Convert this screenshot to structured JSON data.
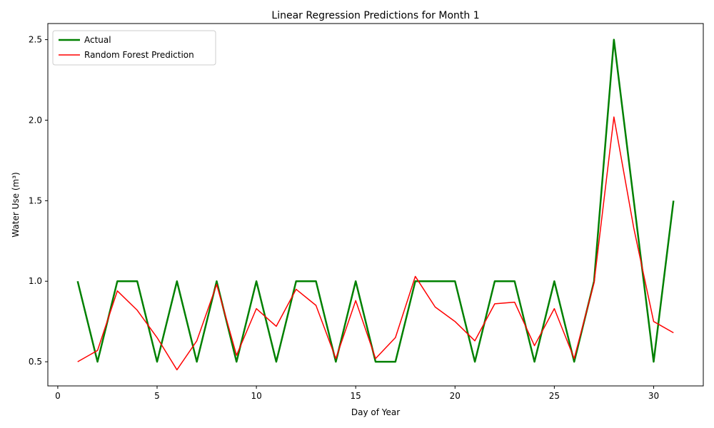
{
  "chart_data": {
    "type": "line",
    "title": "Linear Regression Predictions for Month 1",
    "xlabel": "Day of Year",
    "ylabel": "Water Use (m³)",
    "xlim": [
      -0.5,
      32.5
    ],
    "ylim": [
      0.35,
      2.6
    ],
    "x_ticks": [
      0,
      5,
      10,
      15,
      20,
      25,
      30
    ],
    "y_ticks": [
      0.5,
      1.0,
      1.5,
      2.0,
      2.5
    ],
    "x_tick_labels": [
      "0",
      "5",
      "10",
      "15",
      "20",
      "25",
      "30"
    ],
    "y_tick_labels": [
      "0.5",
      "1.0",
      "1.5",
      "2.0",
      "2.5"
    ],
    "legend_position": "top-left",
    "x": [
      1,
      2,
      3,
      4,
      5,
      6,
      7,
      8,
      9,
      10,
      11,
      12,
      13,
      14,
      15,
      16,
      17,
      18,
      19,
      20,
      21,
      22,
      23,
      24,
      25,
      26,
      27,
      28,
      29,
      30,
      31
    ],
    "series": [
      {
        "name": "Actual",
        "color": "#008000",
        "line_width": "thick",
        "values": [
          1.0,
          0.5,
          1.0,
          1.0,
          0.5,
          1.0,
          0.5,
          1.0,
          0.5,
          1.0,
          0.5,
          1.0,
          1.0,
          0.5,
          1.0,
          0.5,
          0.5,
          1.0,
          1.0,
          1.0,
          0.5,
          1.0,
          1.0,
          0.5,
          1.0,
          0.5,
          1.0,
          2.5,
          1.5,
          0.5,
          1.5
        ]
      },
      {
        "name": "Random Forest Prediction",
        "color": "#ff0000",
        "line_width": "thin",
        "values": [
          0.5,
          0.57,
          0.94,
          0.82,
          0.65,
          0.45,
          0.63,
          0.98,
          0.54,
          0.83,
          0.72,
          0.95,
          0.85,
          0.52,
          0.88,
          0.52,
          0.65,
          1.03,
          0.84,
          0.75,
          0.63,
          0.86,
          0.87,
          0.6,
          0.83,
          0.52,
          0.99,
          2.02,
          1.33,
          0.75,
          0.68
        ]
      }
    ]
  }
}
